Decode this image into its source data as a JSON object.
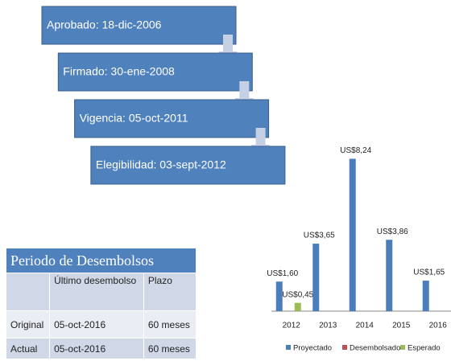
{
  "steps": [
    "Aprobado: 18-dic-2006",
    "Firmado: 30-ene-2008",
    "Vigencia: 05-oct-2011",
    "Elegibilidad:  03-sept-2012"
  ],
  "table": {
    "title": "Periodo de Desembolsos",
    "header": [
      "Último desembolso",
      "Plazo"
    ],
    "rows": [
      [
        "Original",
        "05-oct-2016",
        "60 meses"
      ],
      [
        "Actual",
        "05-oct-2016",
        "60 meses"
      ]
    ]
  },
  "chart_data": {
    "type": "bar",
    "categories": [
      "2012",
      "2013",
      "2014",
      "2015",
      "2016"
    ],
    "series": [
      {
        "name": "Proyectado",
        "color": "#4a7ebb",
        "values": [
          1.6,
          3.65,
          8.24,
          3.86,
          1.65
        ],
        "value_labels": [
          "US$1,60",
          "US$3,65",
          "US$8,24",
          "US$3,86",
          "US$1,65"
        ]
      },
      {
        "name": "Desembolsado",
        "color": "#c0504d",
        "values": [
          null,
          null,
          null,
          null,
          null
        ]
      },
      {
        "name": "Esperado",
        "color": "#9bbb59",
        "values": [
          0.45,
          null,
          null,
          null,
          null
        ],
        "value_labels": [
          "US$0,45",
          null,
          null,
          null,
          null
        ]
      }
    ],
    "ylim": [
      0,
      9
    ],
    "legend": "bottom"
  }
}
